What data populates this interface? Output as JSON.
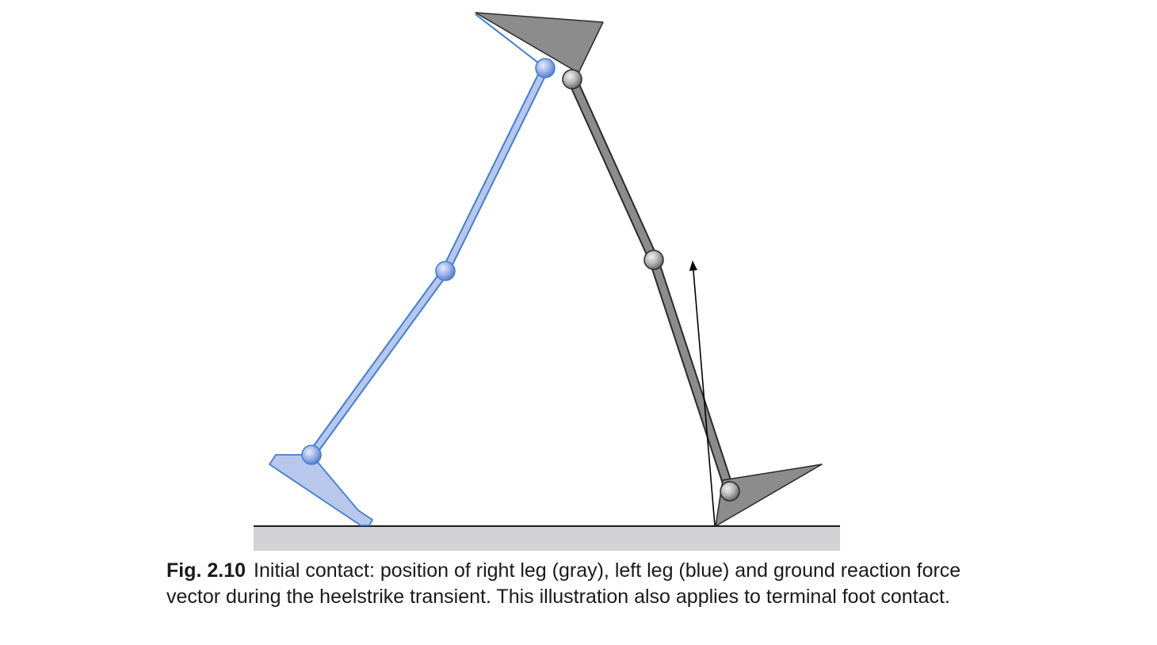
{
  "figure": {
    "label": "Fig. 2.10",
    "caption": "Initial contact: position of right leg (gray), left leg (blue) and ground reaction force vector during the heelstrike transient. This illustration also applies to terminal foot contact."
  },
  "colors": {
    "right_leg_fill": "#8c8c8c",
    "right_leg_stroke": "#2a2a2a",
    "left_leg_fill": "#b9c7ec",
    "left_leg_stroke": "#3f7fd0",
    "ground_fill": "#d3d3d5",
    "vector": "#000000"
  }
}
